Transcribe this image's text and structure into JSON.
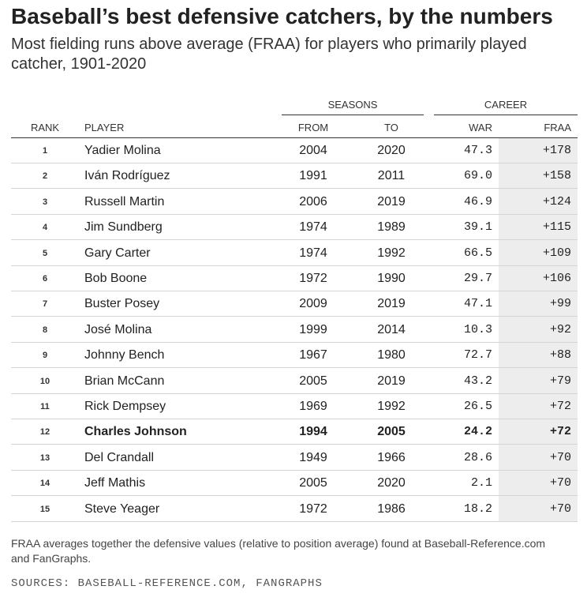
{
  "header": {
    "title": "Baseball’s best defensive catchers, by the numbers",
    "subtitle": "Most fielding runs above average (FRAA) for players who primarily played catcher, 1901-2020"
  },
  "table": {
    "group_headers": {
      "seasons": "SEASONS",
      "career": "CAREER"
    },
    "columns": {
      "rank": "RANK",
      "player": "PLAYER",
      "from": "FROM",
      "to": "TO",
      "war": "WAR",
      "fraa": "FRAA"
    }
  },
  "chart_data": {
    "type": "table",
    "title": "Baseball’s best defensive catchers, by the numbers",
    "subtitle": "Most fielding runs above average (FRAA) for players who primarily played catcher, 1901-2020",
    "highlighted_rank": "12",
    "rows": [
      {
        "rank": "1",
        "player": "Yadier Molina",
        "from": "2004",
        "to": "2020",
        "war": "47.3",
        "fraa": "+178"
      },
      {
        "rank": "2",
        "player": "Iván Rodríguez",
        "from": "1991",
        "to": "2011",
        "war": "69.0",
        "fraa": "+158"
      },
      {
        "rank": "3",
        "player": "Russell Martin",
        "from": "2006",
        "to": "2019",
        "war": "46.9",
        "fraa": "+124"
      },
      {
        "rank": "4",
        "player": "Jim Sundberg",
        "from": "1974",
        "to": "1989",
        "war": "39.1",
        "fraa": "+115"
      },
      {
        "rank": "5",
        "player": "Gary Carter",
        "from": "1974",
        "to": "1992",
        "war": "66.5",
        "fraa": "+109"
      },
      {
        "rank": "6",
        "player": "Bob Boone",
        "from": "1972",
        "to": "1990",
        "war": "29.7",
        "fraa": "+106"
      },
      {
        "rank": "7",
        "player": "Buster Posey",
        "from": "2009",
        "to": "2019",
        "war": "47.1",
        "fraa": "+99"
      },
      {
        "rank": "8",
        "player": "José Molina",
        "from": "1999",
        "to": "2014",
        "war": "10.3",
        "fraa": "+92"
      },
      {
        "rank": "9",
        "player": "Johnny Bench",
        "from": "1967",
        "to": "1980",
        "war": "72.7",
        "fraa": "+88"
      },
      {
        "rank": "10",
        "player": "Brian McCann",
        "from": "2005",
        "to": "2019",
        "war": "43.2",
        "fraa": "+79"
      },
      {
        "rank": "11",
        "player": "Rick Dempsey",
        "from": "1969",
        "to": "1992",
        "war": "26.5",
        "fraa": "+72"
      },
      {
        "rank": "12",
        "player": "Charles Johnson",
        "from": "1994",
        "to": "2005",
        "war": "24.2",
        "fraa": "+72"
      },
      {
        "rank": "13",
        "player": "Del Crandall",
        "from": "1949",
        "to": "1966",
        "war": "28.6",
        "fraa": "+70"
      },
      {
        "rank": "14",
        "player": "Jeff Mathis",
        "from": "2005",
        "to": "2020",
        "war": "2.1",
        "fraa": "+70"
      },
      {
        "rank": "15",
        "player": "Steve Yeager",
        "from": "1972",
        "to": "1986",
        "war": "18.2",
        "fraa": "+70"
      }
    ]
  },
  "footer": {
    "note": "FRAA averages together the defensive values (relative to position average) found at Baseball-Reference.com and FanGraphs.",
    "sources": "SOURCES: BASEBALL-REFERENCE.COM, FANGRAPHS"
  }
}
